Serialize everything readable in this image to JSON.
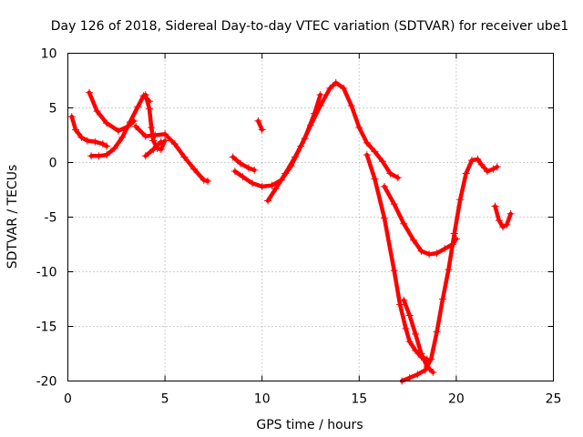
{
  "chart_data": {
    "type": "scatter",
    "title": "Day 126 of 2018, Sidereal Day-to-day VTEC variation (SDTVAR) for receiver ube1",
    "xlabel": "GPS time / hours",
    "ylabel": "SDTVAR / TECUs",
    "xlim": [
      0,
      25
    ],
    "ylim": [
      -20,
      10
    ],
    "xticks": [
      0,
      5,
      10,
      15,
      20,
      25
    ],
    "yticks": [
      -20,
      -15,
      -10,
      -5,
      0,
      5,
      10
    ],
    "grid": true,
    "legend": "none",
    "marker": "plus",
    "color": "#ff0000",
    "series": [
      {
        "x": [
          0.2,
          0.4,
          0.7,
          1.0,
          1.4,
          1.8,
          2.0
        ],
        "y": [
          4.2,
          3.0,
          2.3,
          2.0,
          1.9,
          1.7,
          1.5
        ]
      },
      {
        "x": [
          1.1,
          1.5,
          2.0,
          2.6,
          3.1,
          3.4
        ],
        "y": [
          6.4,
          4.7,
          3.6,
          2.9,
          3.3,
          3.8
        ]
      },
      {
        "x": [
          1.2,
          1.6,
          2.0,
          2.4,
          2.8,
          3.2,
          3.6,
          3.9,
          4.2
        ],
        "y": [
          0.6,
          0.6,
          0.7,
          1.3,
          2.3,
          3.7,
          5.1,
          6.1,
          5.6
        ]
      },
      {
        "x": [
          3.5,
          4.0,
          4.5,
          5.0,
          5.5,
          6.0,
          6.5,
          7.0,
          7.2
        ],
        "y": [
          3.3,
          2.4,
          2.5,
          2.6,
          1.7,
          0.5,
          -0.6,
          -1.6,
          -1.7
        ]
      },
      {
        "x": [
          4.0,
          4.2,
          4.3,
          4.4,
          4.6,
          4.8,
          5.0
        ],
        "y": [
          6.2,
          4.9,
          3.2,
          2.0,
          1.3,
          1.2,
          2.0
        ]
      },
      {
        "x": [
          4.0,
          4.4,
          4.8
        ],
        "y": [
          0.6,
          1.2,
          1.9
        ]
      },
      {
        "x": [
          8.5,
          8.9,
          9.3,
          9.6
        ],
        "y": [
          0.5,
          -0.1,
          -0.5,
          -0.7
        ]
      },
      {
        "x": [
          8.6,
          9.0,
          9.5,
          10.0,
          10.5,
          11.0,
          11.5,
          12.0,
          12.5,
          13.0,
          13.5,
          13.8,
          14.2,
          14.6,
          15.0,
          15.4,
          15.8,
          16.2,
          16.6,
          17.0
        ],
        "y": [
          -0.8,
          -1.3,
          -1.9,
          -2.2,
          -2.1,
          -1.6,
          -0.3,
          1.5,
          3.4,
          5.2,
          6.8,
          7.3,
          6.8,
          5.2,
          3.2,
          1.8,
          1.0,
          0.1,
          -1.0,
          -1.4
        ]
      },
      {
        "x": [
          9.8,
          10.0
        ],
        "y": [
          3.8,
          3.0
        ]
      },
      {
        "x": [
          10.3,
          10.7,
          11.2,
          11.7,
          12.2,
          12.7,
          13.0
        ],
        "y": [
          -3.5,
          -2.4,
          -1.0,
          0.5,
          2.2,
          4.5,
          6.2
        ]
      },
      {
        "x": [
          15.4,
          15.8,
          16.3,
          16.8,
          17.1,
          17.4,
          17.6,
          17.9,
          18.2,
          18.5
        ],
        "y": [
          0.7,
          -1.5,
          -5.1,
          -9.9,
          -13.0,
          -15.2,
          -16.4,
          -17.2,
          -17.8,
          -18.0
        ]
      },
      {
        "x": [
          16.3,
          16.8,
          17.3,
          17.8,
          18.2,
          18.6,
          19.0,
          19.4,
          19.8,
          20.0
        ],
        "y": [
          -2.2,
          -3.8,
          -5.6,
          -7.1,
          -8.1,
          -8.4,
          -8.3,
          -7.9,
          -7.5,
          -7.0
        ]
      },
      {
        "x": [
          17.2,
          17.6,
          18.0,
          18.4,
          18.7,
          19.0,
          19.3,
          19.6,
          19.9,
          20.2,
          20.5,
          20.8,
          21.1,
          21.3,
          21.6,
          21.9,
          22.1
        ],
        "y": [
          -20.0,
          -19.7,
          -19.4,
          -19.0,
          -18.0,
          -15.5,
          -12.5,
          -9.8,
          -6.5,
          -3.4,
          -1.0,
          0.2,
          0.3,
          -0.2,
          -0.8,
          -0.6,
          -0.4
        ]
      },
      {
        "x": [
          17.3,
          17.6,
          17.9,
          18.2,
          18.5,
          18.8
        ],
        "y": [
          -12.6,
          -14.0,
          -15.7,
          -17.5,
          -18.7,
          -19.2
        ]
      },
      {
        "x": [
          22.0,
          22.2,
          22.4,
          22.6,
          22.8
        ],
        "y": [
          -4.0,
          -5.3,
          -5.9,
          -5.7,
          -4.7
        ]
      }
    ]
  }
}
